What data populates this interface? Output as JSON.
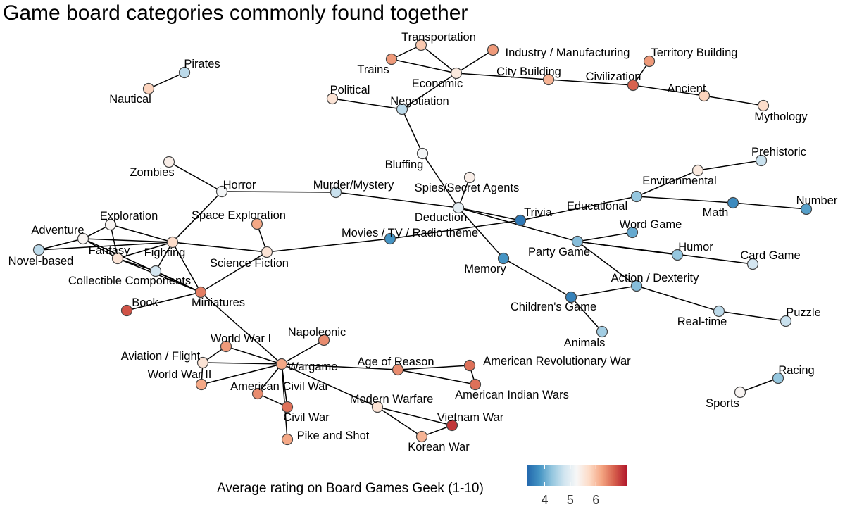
{
  "title": "Game board categories commonly found together",
  "legend": {
    "title": "Average rating on Board Games Geek (1-10)",
    "ticks": [
      "4",
      "5",
      "6"
    ],
    "tick_values": [
      4,
      5,
      6
    ],
    "range": [
      3.3,
      7.2
    ],
    "colors": [
      "#2166ac",
      "#4393c3",
      "#92c5de",
      "#d1e5f0",
      "#f7f7f7",
      "#fddbc7",
      "#f4a582",
      "#d6604d",
      "#b2182b"
    ]
  },
  "nodes": [
    {
      "id": "Pirates",
      "label": "Pirates",
      "rating": 4.6
    },
    {
      "id": "Nautical",
      "label": "Nautical",
      "rating": 5.8
    },
    {
      "id": "Transportation",
      "label": "Transportation",
      "rating": 5.9
    },
    {
      "id": "Trains",
      "label": "Trains",
      "rating": 6.3
    },
    {
      "id": "Industry",
      "label": "Industry / Manufacturing",
      "rating": 6.3
    },
    {
      "id": "Economic",
      "label": "Economic",
      "rating": 5.5
    },
    {
      "id": "TerritoryBuilding",
      "label": "Territory Building",
      "rating": 6.3
    },
    {
      "id": "CityBuilding",
      "label": "City Building",
      "rating": 6.1
    },
    {
      "id": "Civilization",
      "label": "Civilization",
      "rating": 6.7
    },
    {
      "id": "Ancient",
      "label": "Ancient",
      "rating": 5.8
    },
    {
      "id": "Mythology",
      "label": "Mythology",
      "rating": 5.7
    },
    {
      "id": "Political",
      "label": "Political",
      "rating": 5.6
    },
    {
      "id": "Negotiation",
      "label": "Negotiation",
      "rating": 4.6
    },
    {
      "id": "Bluffing",
      "label": "Bluffing",
      "rating": 5.2
    },
    {
      "id": "Zombies",
      "label": "Zombies",
      "rating": 5.4
    },
    {
      "id": "Horror",
      "label": "Horror",
      "rating": 5.2
    },
    {
      "id": "MurderMystery",
      "label": "Murder/Mystery",
      "rating": 4.7
    },
    {
      "id": "SpiesSecretAgents",
      "label": "Spies/Secret Agents",
      "rating": 5.4
    },
    {
      "id": "Deduction",
      "label": "Deduction",
      "rating": 5.0
    },
    {
      "id": "Prehistoric",
      "label": "Prehistoric",
      "rating": 4.7
    },
    {
      "id": "Environmental",
      "label": "Environmental",
      "rating": 5.5
    },
    {
      "id": "Educational",
      "label": "Educational",
      "rating": 4.3
    },
    {
      "id": "Math",
      "label": "Math",
      "rating": 3.7
    },
    {
      "id": "Number",
      "label": "Number",
      "rating": 3.9
    },
    {
      "id": "Trivia",
      "label": "Trivia",
      "rating": 3.5
    },
    {
      "id": "WordGame",
      "label": "Word Game",
      "rating": 4.0
    },
    {
      "id": "Adventure",
      "label": "Adventure",
      "rating": 5.3
    },
    {
      "id": "Exploration",
      "label": "Exploration",
      "rating": 5.3
    },
    {
      "id": "SpaceExploration",
      "label": "Space Exploration",
      "rating": 6.2
    },
    {
      "id": "MoviesTVRadio",
      "label": "Movies / TV / Radio theme",
      "rating": 3.8
    },
    {
      "id": "NovelBased",
      "label": "Novel-based",
      "rating": 4.6
    },
    {
      "id": "Fantasy",
      "label": "Fantasy",
      "rating": 5.6
    },
    {
      "id": "Fighting",
      "label": "Fighting",
      "rating": 5.7
    },
    {
      "id": "ScienceFiction",
      "label": "Science Fiction",
      "rating": 5.6
    },
    {
      "id": "CollectibleComponents",
      "label": "Collectible Components",
      "rating": 4.8
    },
    {
      "id": "PartyGame",
      "label": "Party Game",
      "rating": 4.2
    },
    {
      "id": "Humor",
      "label": "Humor",
      "rating": 4.3
    },
    {
      "id": "CardGame",
      "label": "Card Game",
      "rating": 4.8
    },
    {
      "id": "Memory",
      "label": "Memory",
      "rating": 3.8
    },
    {
      "id": "ActionDexterity",
      "label": "Action / Dexterity",
      "rating": 4.2
    },
    {
      "id": "Book",
      "label": "Book",
      "rating": 6.8
    },
    {
      "id": "Miniatures",
      "label": "Miniatures",
      "rating": 6.5
    },
    {
      "id": "ChildrensGame",
      "label": "Children's Game",
      "rating": 3.6
    },
    {
      "id": "RealTime",
      "label": "Real-time",
      "rating": 4.6
    },
    {
      "id": "Puzzle",
      "label": "Puzzle",
      "rating": 4.7
    },
    {
      "id": "Animals",
      "label": "Animals",
      "rating": 4.4
    },
    {
      "id": "Napoleonic",
      "label": "Napoleonic",
      "rating": 6.4
    },
    {
      "id": "WorldWarI",
      "label": "World War I",
      "rating": 6.3
    },
    {
      "id": "AviationFlight",
      "label": "Aviation / Flight",
      "rating": 5.6
    },
    {
      "id": "Wargame",
      "label": "Wargame",
      "rating": 6.2
    },
    {
      "id": "AgeOfReason",
      "label": "Age of Reason",
      "rating": 6.4
    },
    {
      "id": "AmericanRevolutionaryWar",
      "label": "American Revolutionary War",
      "rating": 6.6
    },
    {
      "id": "WorldWarII",
      "label": "World War II",
      "rating": 6.2
    },
    {
      "id": "AmericanCivilWar",
      "label": "American Civil War",
      "rating": 6.4
    },
    {
      "id": "AmericanIndianWars",
      "label": "American Indian Wars",
      "rating": 6.6
    },
    {
      "id": "ModernWarfare",
      "label": "Modern Warfare",
      "rating": 5.6
    },
    {
      "id": "CivilWar",
      "label": "Civil War",
      "rating": 6.6
    },
    {
      "id": "VietnamWar",
      "label": "Vietnam War",
      "rating": 7.0
    },
    {
      "id": "PikeAndShot",
      "label": "Pike and Shot",
      "rating": 6.2
    },
    {
      "id": "KoreanWar",
      "label": "Korean War",
      "rating": 6.1
    },
    {
      "id": "Racing",
      "label": "Racing",
      "rating": 4.3
    },
    {
      "id": "Sports",
      "label": "Sports",
      "rating": 5.3
    }
  ],
  "edges": [
    [
      "Pirates",
      "Nautical"
    ],
    [
      "Transportation",
      "Trains"
    ],
    [
      "Transportation",
      "Economic"
    ],
    [
      "Trains",
      "Economic"
    ],
    [
      "Industry",
      "Economic"
    ],
    [
      "Economic",
      "CityBuilding"
    ],
    [
      "Economic",
      "Negotiation"
    ],
    [
      "CityBuilding",
      "Civilization"
    ],
    [
      "Civilization",
      "TerritoryBuilding"
    ],
    [
      "Civilization",
      "Ancient"
    ],
    [
      "Ancient",
      "Mythology"
    ],
    [
      "Political",
      "Negotiation"
    ],
    [
      "Negotiation",
      "Bluffing"
    ],
    [
      "Bluffing",
      "Deduction"
    ],
    [
      "SpiesSecretAgents",
      "Deduction"
    ],
    [
      "Zombies",
      "Horror"
    ],
    [
      "Horror",
      "MurderMystery"
    ],
    [
      "Horror",
      "Fighting"
    ],
    [
      "MurderMystery",
      "Deduction"
    ],
    [
      "Deduction",
      "Trivia"
    ],
    [
      "Deduction",
      "PartyGame"
    ],
    [
      "Deduction",
      "Memory"
    ],
    [
      "Trivia",
      "Educational"
    ],
    [
      "Educational",
      "Environmental"
    ],
    [
      "Environmental",
      "Prehistoric"
    ],
    [
      "Educational",
      "Math"
    ],
    [
      "Math",
      "Number"
    ],
    [
      "PartyGame",
      "WordGame"
    ],
    [
      "PartyGame",
      "Humor"
    ],
    [
      "PartyGame",
      "CardGame"
    ],
    [
      "PartyGame",
      "ActionDexterity"
    ],
    [
      "ActionDexterity",
      "ChildrensGame"
    ],
    [
      "ActionDexterity",
      "RealTime"
    ],
    [
      "RealTime",
      "Puzzle"
    ],
    [
      "Memory",
      "ChildrensGame"
    ],
    [
      "ChildrensGame",
      "Animals"
    ],
    [
      "Adventure",
      "Exploration"
    ],
    [
      "Adventure",
      "NovelBased"
    ],
    [
      "Adventure",
      "Fantasy"
    ],
    [
      "Adventure",
      "Fighting"
    ],
    [
      "Adventure",
      "Miniatures"
    ],
    [
      "NovelBased",
      "Fighting"
    ],
    [
      "Exploration",
      "Fantasy"
    ],
    [
      "Exploration",
      "Fighting"
    ],
    [
      "Fantasy",
      "Fighting"
    ],
    [
      "Fantasy",
      "CollectibleComponents"
    ],
    [
      "Fantasy",
      "Miniatures"
    ],
    [
      "Fighting",
      "CollectibleComponents"
    ],
    [
      "Fighting",
      "Miniatures"
    ],
    [
      "Fighting",
      "ScienceFiction"
    ],
    [
      "SpaceExploration",
      "ScienceFiction"
    ],
    [
      "ScienceFiction",
      "Miniatures"
    ],
    [
      "ScienceFiction",
      "MoviesTVRadio"
    ],
    [
      "MoviesTVRadio",
      "Trivia"
    ],
    [
      "CollectibleComponents",
      "Miniatures"
    ],
    [
      "Book",
      "Miniatures"
    ],
    [
      "Miniatures",
      "Wargame"
    ],
    [
      "Wargame",
      "Napoleonic"
    ],
    [
      "Wargame",
      "WorldWarI"
    ],
    [
      "Wargame",
      "AviationFlight"
    ],
    [
      "Wargame",
      "WorldWarII"
    ],
    [
      "Wargame",
      "AmericanCivilWar"
    ],
    [
      "Wargame",
      "CivilWar"
    ],
    [
      "Wargame",
      "AgeOfReason"
    ],
    [
      "Wargame",
      "ModernWarfare"
    ],
    [
      "Wargame",
      "PikeAndShot"
    ],
    [
      "WorldWarI",
      "AviationFlight"
    ],
    [
      "AviationFlight",
      "WorldWarII"
    ],
    [
      "AmericanCivilWar",
      "CivilWar"
    ],
    [
      "AgeOfReason",
      "AmericanRevolutionaryWar"
    ],
    [
      "AgeOfReason",
      "AmericanIndianWars"
    ],
    [
      "AmericanRevolutionaryWar",
      "AmericanIndianWars"
    ],
    [
      "ModernWarfare",
      "VietnamWar"
    ],
    [
      "ModernWarfare",
      "KoreanWar"
    ],
    [
      "VietnamWar",
      "KoreanWar"
    ],
    [
      "Racing",
      "Sports"
    ]
  ]
}
